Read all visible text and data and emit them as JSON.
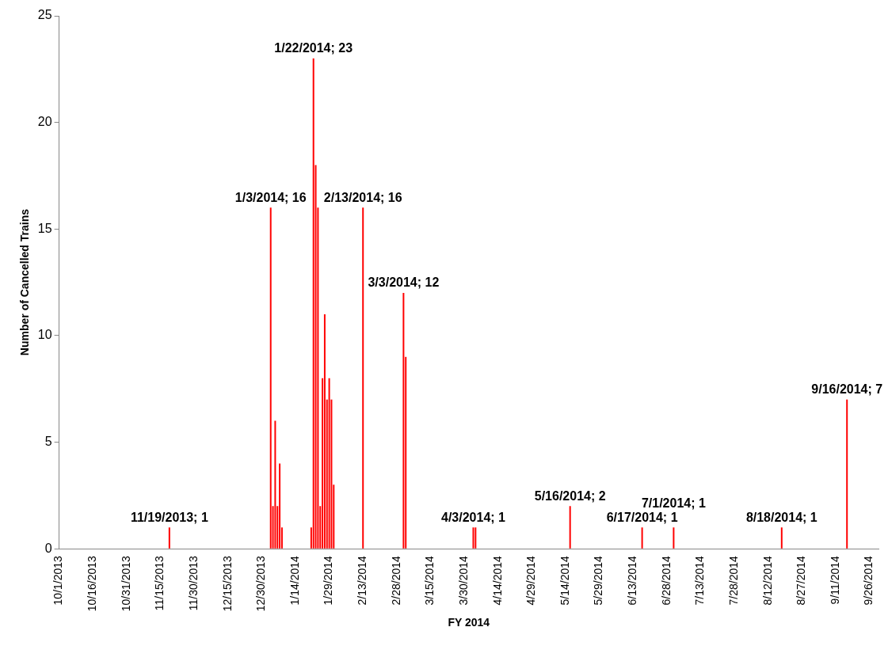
{
  "chart_data": {
    "type": "bar",
    "xlabel": "FY 2014",
    "ylabel": "Number of Cancelled Trains",
    "x": [
      "2013-11-19",
      "2014-01-03",
      "2014-01-04",
      "2014-01-05",
      "2014-01-06",
      "2014-01-07",
      "2014-01-08",
      "2014-01-21",
      "2014-01-22",
      "2014-01-23",
      "2014-01-24",
      "2014-01-25",
      "2014-01-26",
      "2014-01-27",
      "2014-01-28",
      "2014-01-29",
      "2014-01-30",
      "2014-01-31",
      "2014-02-13",
      "2014-03-03",
      "2014-03-04",
      "2014-04-03",
      "2014-04-04",
      "2014-05-16",
      "2014-06-17",
      "2014-07-01",
      "2014-08-18",
      "2014-09-16"
    ],
    "values": [
      1,
      16,
      2,
      6,
      2,
      4,
      1,
      1,
      23,
      18,
      16,
      2,
      8,
      11,
      7,
      8,
      7,
      3,
      16,
      12,
      9,
      1,
      1,
      2,
      1,
      1,
      1,
      7
    ],
    "value_labels": [
      "11/19/2013; 1",
      "1/3/2014; 16",
      null,
      null,
      null,
      null,
      null,
      null,
      "1/22/2014; 23",
      null,
      null,
      null,
      null,
      null,
      null,
      null,
      null,
      null,
      "2/13/2014; 16",
      "3/3/2014; 12",
      null,
      "4/3/2014; 1",
      null,
      "5/16/2014; 2",
      "6/17/2014; 1",
      "7/1/2014; 1",
      "8/18/2014; 1",
      "9/16/2014; 7"
    ],
    "color": "#ff0000",
    "xlim": [
      "2013-10-01",
      "2014-09-30"
    ],
    "xticks": [
      {
        "value": "2013-10-01",
        "label": "10/1/2013"
      },
      {
        "value": "2013-10-16",
        "label": "10/16/2013"
      },
      {
        "value": "2013-10-31",
        "label": "10/31/2013"
      },
      {
        "value": "2013-11-15",
        "label": "11/15/2013"
      },
      {
        "value": "2013-11-30",
        "label": "11/30/2013"
      },
      {
        "value": "2013-12-15",
        "label": "12/15/2013"
      },
      {
        "value": "2013-12-30",
        "label": "12/30/2013"
      },
      {
        "value": "2014-01-14",
        "label": "1/14/2014"
      },
      {
        "value": "2014-01-29",
        "label": "1/29/2014"
      },
      {
        "value": "2014-02-13",
        "label": "2/13/2014"
      },
      {
        "value": "2014-02-28",
        "label": "2/28/2014"
      },
      {
        "value": "2014-03-15",
        "label": "3/15/2014"
      },
      {
        "value": "2014-03-30",
        "label": "3/30/2014"
      },
      {
        "value": "2014-04-14",
        "label": "4/14/2014"
      },
      {
        "value": "2014-04-29",
        "label": "4/29/2014"
      },
      {
        "value": "2014-05-14",
        "label": "5/14/2014"
      },
      {
        "value": "2014-05-29",
        "label": "5/29/2014"
      },
      {
        "value": "2014-06-13",
        "label": "6/13/2014"
      },
      {
        "value": "2014-06-28",
        "label": "6/28/2014"
      },
      {
        "value": "2014-07-13",
        "label": "7/13/2014"
      },
      {
        "value": "2014-07-28",
        "label": "7/28/2014"
      },
      {
        "value": "2014-08-12",
        "label": "8/12/2014"
      },
      {
        "value": "2014-08-27",
        "label": "8/27/2014"
      },
      {
        "value": "2014-09-11",
        "label": "9/11/2014"
      },
      {
        "value": "2014-09-26",
        "label": "9/26/2014"
      }
    ],
    "ylim": [
      0,
      25
    ],
    "yticks": [
      0,
      5,
      10,
      15,
      20,
      25
    ],
    "grid": false,
    "legend": false
  }
}
